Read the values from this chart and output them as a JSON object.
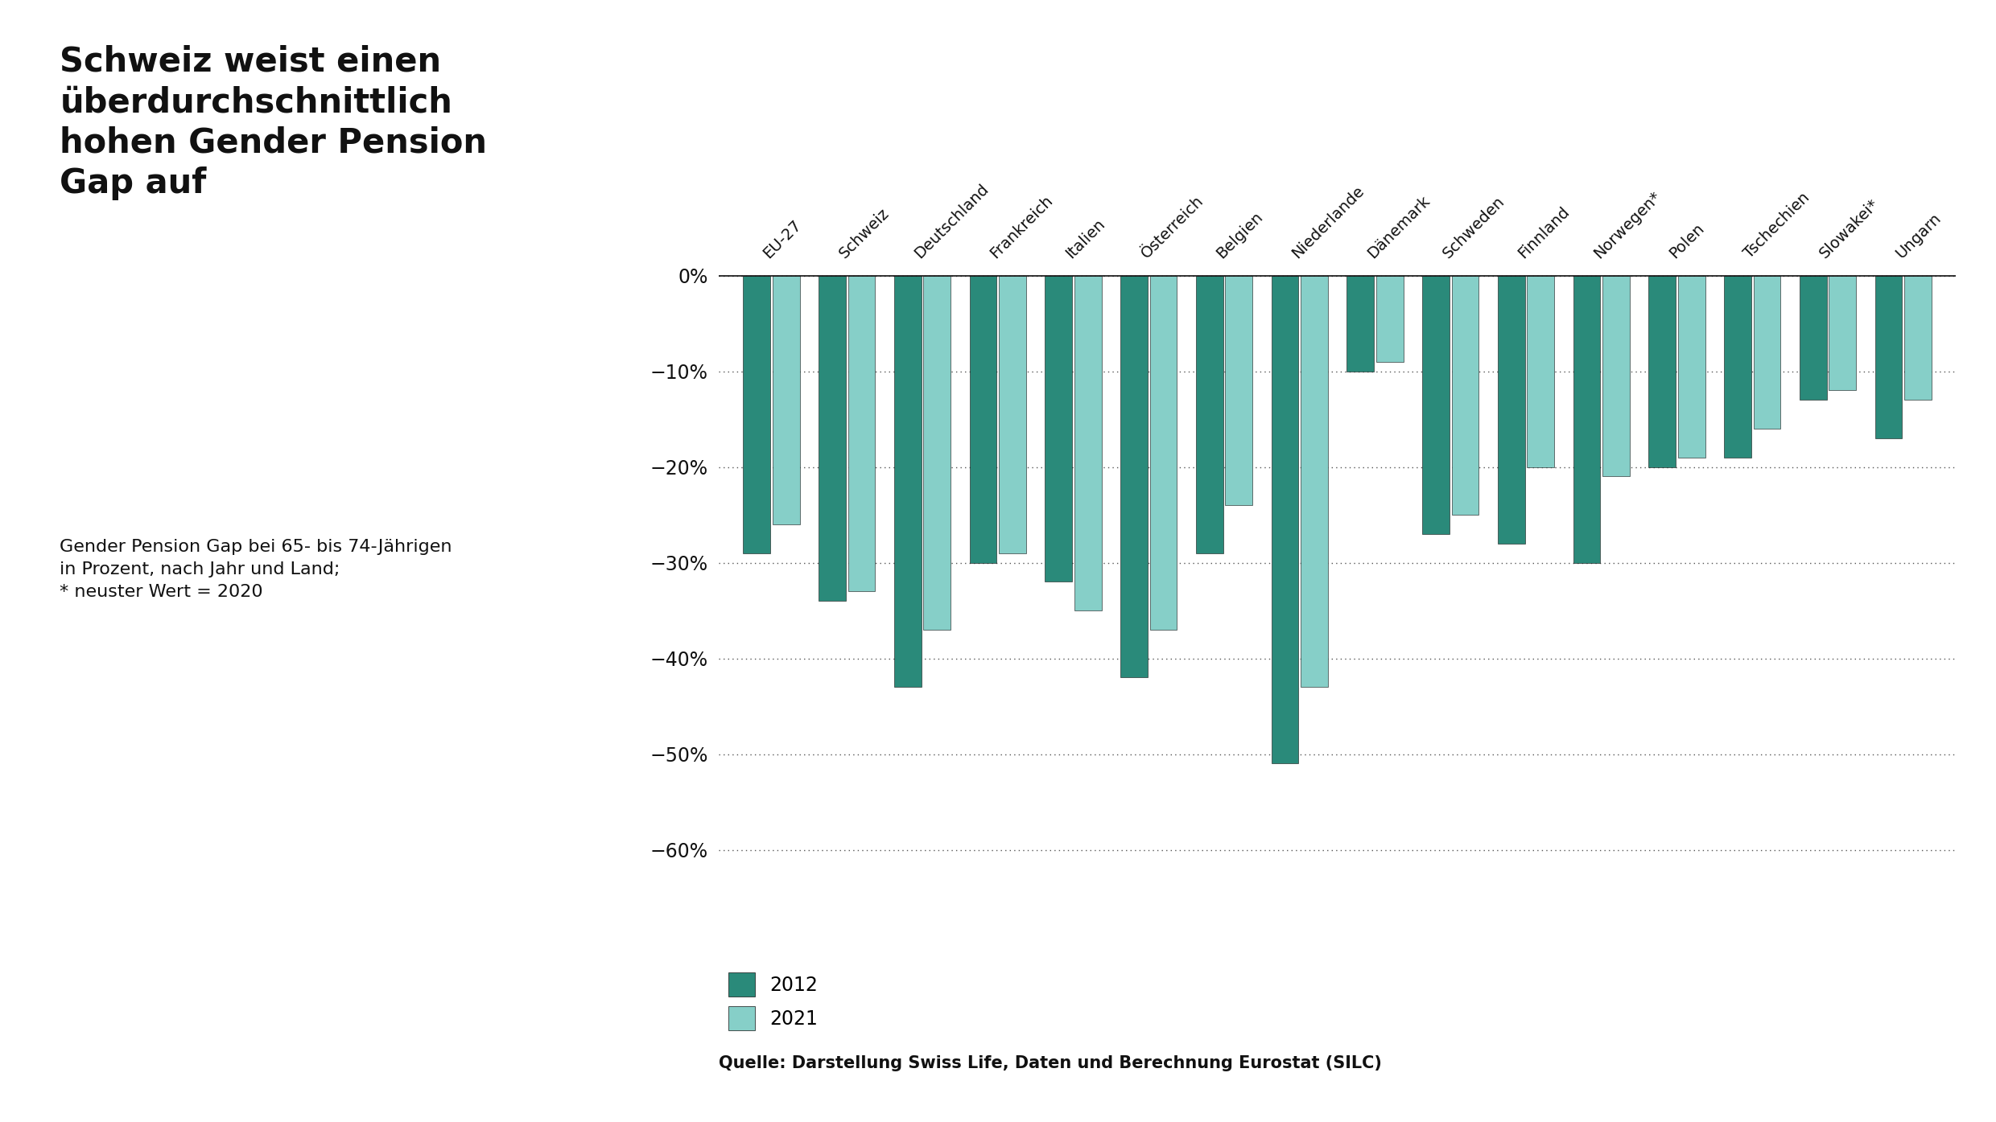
{
  "title": "Schweiz weist einen\nüberdurchschnittlich\nhohen Gender Pension\nGap auf",
  "subtitle": "Gender Pension Gap bei 65- bis 74-Jährigen\nin Prozent, nach Jahr und Land;\n* neuster Wert = 2020",
  "source": "Quelle: Darstellung Swiss Life, Daten und Berechnung Eurostat (SILC)",
  "legend_2012": "2012",
  "legend_2021": "2021",
  "color_2012": "#2a8a7a",
  "color_2021": "#86cfc8",
  "background_color": "#ffffff",
  "text_color": "#111111",
  "categories": [
    "EU-27",
    "Schweiz",
    "Deutschland",
    "Frankreich",
    "Italien",
    "Österreich",
    "Belgien",
    "Niederlande",
    "Dänemark",
    "Schweden",
    "Finnland",
    "Norwegen*",
    "Polen",
    "Tschechien",
    "Slowakei*",
    "Ungarn"
  ],
  "values_2012": [
    -29,
    -34,
    -43,
    -30,
    -32,
    -42,
    -29,
    -51,
    -10,
    -27,
    -28,
    -30,
    -20,
    -19,
    -13,
    -17
  ],
  "values_2021": [
    -26,
    -33,
    -37,
    -29,
    -35,
    -37,
    -24,
    -43,
    -9,
    -25,
    -20,
    -21,
    -19,
    -16,
    -12,
    -13
  ],
  "ylim": [
    -65,
    3
  ],
  "yticks": [
    0,
    -10,
    -20,
    -30,
    -40,
    -50,
    -60
  ],
  "yticklabels": [
    "0%",
    "−10%",
    "−20%",
    "−30%",
    "−40%",
    "−50%",
    "−60%"
  ],
  "bar_width": 0.36,
  "bar_gap": 0.03
}
